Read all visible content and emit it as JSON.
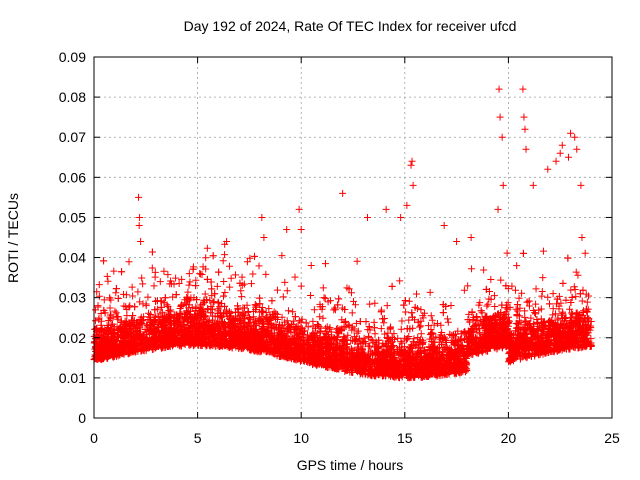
{
  "chart_data": {
    "type": "scatter",
    "title": "Day 192 of 2024, Rate Of TEC Index for receiver ufcd",
    "xlabel": "GPS time / hours",
    "ylabel": "ROTI / TECUs",
    "xlim": [
      0,
      25
    ],
    "ylim": [
      0,
      0.09
    ],
    "x_ticks": [
      "0",
      "5",
      "10",
      "15",
      "20",
      "25"
    ],
    "y_ticks": [
      "0",
      "0.01",
      "0.02",
      "0.03",
      "0.04",
      "0.05",
      "0.06",
      "0.07",
      "0.08",
      "0.09"
    ],
    "grid": true,
    "marker": "plus",
    "color": "#ff0000",
    "series": [
      {
        "x": [
          2.15,
          2.2,
          2.18,
          2.25,
          6.4,
          8.1,
          8.2,
          9.3,
          9.9,
          10.0,
          12.0,
          13.2,
          14.1,
          15.3,
          15.35,
          15.4,
          16.9,
          19.55,
          19.6,
          19.7,
          19.75,
          20.7,
          20.75,
          20.8,
          20.85,
          21.9,
          22.3,
          22.5,
          22.6,
          22.9,
          23.0,
          23.2,
          23.3,
          23.5,
          23.55,
          19.5,
          20.4,
          21.2,
          14.8,
          15.1,
          17.5,
          18.2,
          4.6,
          5.1,
          3.2
        ],
        "y": [
          0.055,
          0.05,
          0.048,
          0.044,
          0.044,
          0.05,
          0.045,
          0.047,
          0.052,
          0.047,
          0.056,
          0.05,
          0.052,
          0.063,
          0.064,
          0.058,
          0.048,
          0.082,
          0.075,
          0.07,
          0.058,
          0.082,
          0.075,
          0.072,
          0.067,
          0.062,
          0.064,
          0.066,
          0.068,
          0.065,
          0.071,
          0.07,
          0.067,
          0.058,
          0.045,
          0.052,
          0.038,
          0.058,
          0.05,
          0.053,
          0.044,
          0.045,
          0.036,
          0.036,
          0.034
        ]
      }
    ]
  }
}
